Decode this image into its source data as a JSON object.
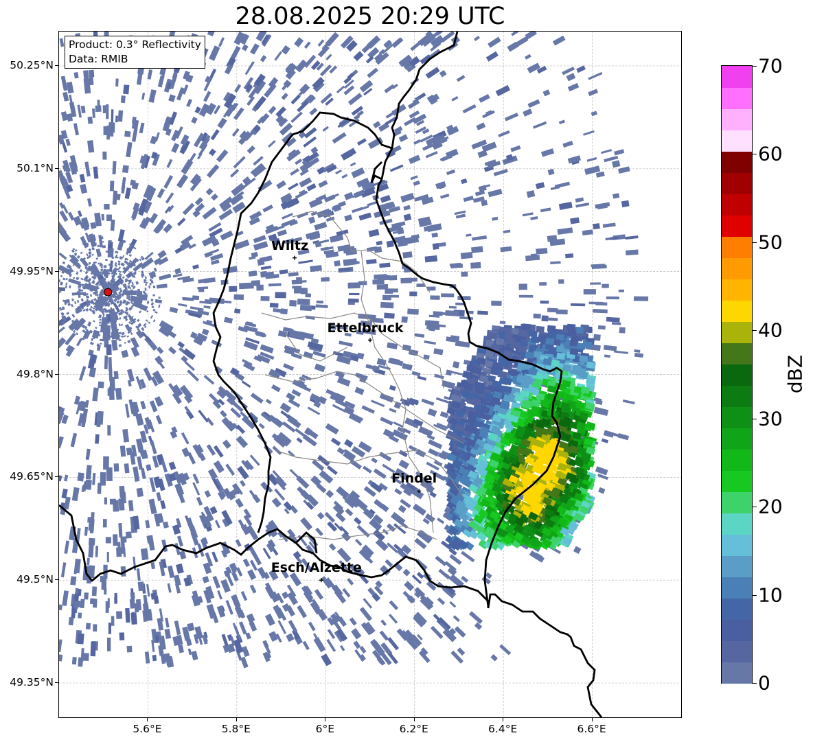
{
  "title": "28.08.2025 20:29 UTC",
  "info": {
    "product": "Product: 0.3° Reflectivity",
    "data": "Data: RMIB"
  },
  "axes": {
    "lat_ticks": [
      "50.25°N",
      "50.1°N",
      "49.95°N",
      "49.8°N",
      "49.65°N",
      "49.5°N",
      "49.35°N"
    ],
    "lon_ticks": [
      "5.6°E",
      "5.8°E",
      "6°E",
      "6.2°E",
      "6.4°E",
      "6.6°E"
    ],
    "lat_range": [
      49.3,
      50.3
    ],
    "lon_range": [
      5.4,
      6.8
    ]
  },
  "cities": [
    {
      "name": "Wiltz",
      "lon": 5.93,
      "lat": 49.97
    },
    {
      "name": "Ettelbruck",
      "lon": 6.1,
      "lat": 49.85
    },
    {
      "name": "Findel",
      "lon": 6.21,
      "lat": 49.63
    },
    {
      "name": "Esch/Alzette",
      "lon": 5.99,
      "lat": 49.5
    }
  ],
  "radar_site": {
    "lon": 5.51,
    "lat": 49.92,
    "color": "#e01010"
  },
  "colorbar": {
    "label": "dBZ",
    "ticks": [
      "0",
      "10",
      "20",
      "30",
      "40",
      "50",
      "60",
      "70"
    ],
    "min": 0,
    "max": 70,
    "colors": [
      "#6677a8",
      "#5566a0",
      "#4a5fa0",
      "#4466a6",
      "#4a80b5",
      "#5a9ec8",
      "#66bfd9",
      "#5cd6c4",
      "#3ed36a",
      "#16c820",
      "#12b818",
      "#10a518",
      "#0e9016",
      "#0c7c12",
      "#0a680e",
      "#44761a",
      "#aab30a",
      "#ffd700",
      "#ffb400",
      "#ff9a00",
      "#ff7e00",
      "#e00000",
      "#c00000",
      "#a00000",
      "#800000",
      "#ffe0ff",
      "#ffb0ff",
      "#ff70ff",
      "#f040f0"
    ]
  },
  "colors": {
    "precip_light": "#6677a8",
    "border": "#000000",
    "canton": "#888888"
  }
}
